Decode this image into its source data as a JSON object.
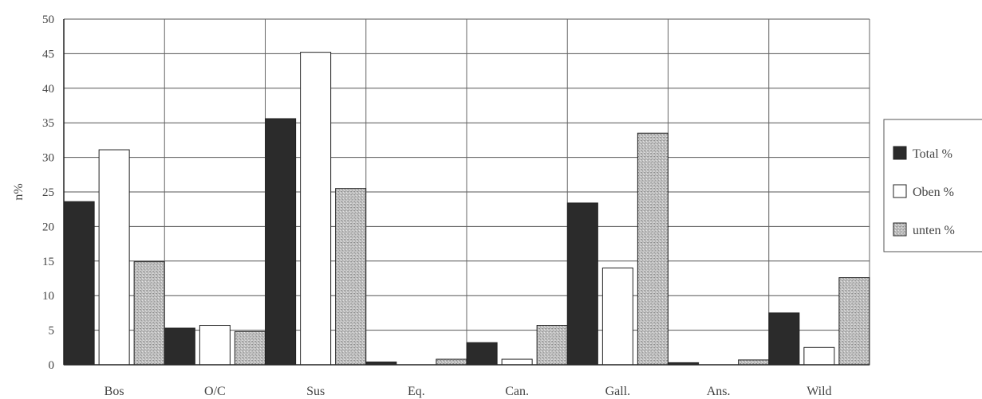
{
  "chart_data": {
    "type": "bar",
    "ylabel": "n%",
    "ylim": [
      0,
      50
    ],
    "yticks": [
      0,
      5,
      10,
      15,
      20,
      25,
      30,
      35,
      40,
      45,
      50
    ],
    "grid": true,
    "legend_position": "right",
    "categories": [
      "Bos",
      "O/C",
      "Sus",
      "Eq.",
      "Can.",
      "Gall.",
      "Ans.",
      "Wild"
    ],
    "series": [
      {
        "name": "Total %",
        "color": "#2b2b2b",
        "values": [
          23.6,
          5.3,
          35.6,
          0.4,
          3.2,
          23.4,
          0.3,
          7.5
        ]
      },
      {
        "name": "Oben %",
        "color": "#ffffff",
        "values": [
          31.1,
          5.7,
          45.2,
          0.0,
          0.8,
          14.0,
          0.0,
          2.5
        ]
      },
      {
        "name": "unten %",
        "color": "#b5b5b5",
        "values": [
          14.9,
          4.8,
          25.5,
          0.8,
          5.7,
          33.5,
          0.7,
          12.6
        ]
      }
    ]
  }
}
